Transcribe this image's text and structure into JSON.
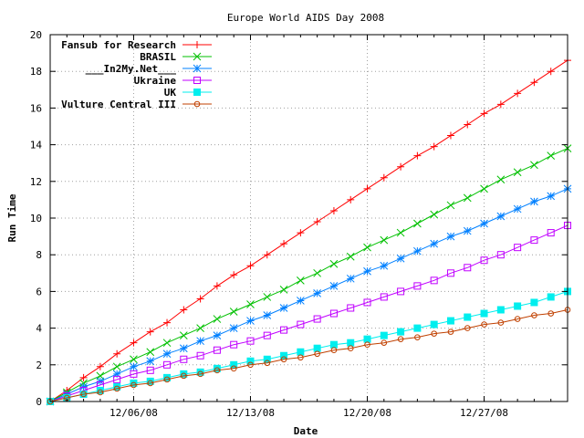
{
  "chart_data": {
    "type": "line",
    "title": "Europe World AIDS Day 2008",
    "xlabel": "Date",
    "ylabel": "Run Time",
    "xlim": [
      "2008-12-01",
      "2009-01-01"
    ],
    "ylim": [
      0,
      20
    ],
    "yticks": [
      0,
      2,
      4,
      6,
      8,
      10,
      12,
      14,
      16,
      18,
      20
    ],
    "xticks": [
      {
        "date": "2008-12-06",
        "label": "12/06/08"
      },
      {
        "date": "2008-12-13",
        "label": "12/13/08"
      },
      {
        "date": "2008-12-20",
        "label": "12/20/08"
      },
      {
        "date": "2008-12-27",
        "label": "12/27/08"
      }
    ],
    "grid": true,
    "legend_position": "top-left",
    "x": [
      "2008-12-01",
      "2008-12-02",
      "2008-12-03",
      "2008-12-04",
      "2008-12-05",
      "2008-12-06",
      "2008-12-07",
      "2008-12-08",
      "2008-12-09",
      "2008-12-10",
      "2008-12-11",
      "2008-12-12",
      "2008-12-13",
      "2008-12-14",
      "2008-12-15",
      "2008-12-16",
      "2008-12-17",
      "2008-12-18",
      "2008-12-19",
      "2008-12-20",
      "2008-12-21",
      "2008-12-22",
      "2008-12-23",
      "2008-12-24",
      "2008-12-25",
      "2008-12-26",
      "2008-12-27",
      "2008-12-28",
      "2008-12-29",
      "2008-12-30",
      "2008-12-31",
      "2009-01-01"
    ],
    "series": [
      {
        "name": "Fansub for Research",
        "color": "#ff0000",
        "marker": "plus",
        "values": [
          0,
          0.6,
          1.3,
          1.9,
          2.6,
          3.2,
          3.8,
          4.3,
          5.0,
          5.6,
          6.3,
          6.9,
          7.4,
          8.0,
          8.6,
          9.2,
          9.8,
          10.4,
          11.0,
          11.6,
          12.2,
          12.8,
          13.4,
          13.9,
          14.5,
          15.1,
          15.7,
          16.2,
          16.8,
          17.4,
          18.0,
          18.6
        ]
      },
      {
        "name": "BRASIL",
        "color": "#00c000",
        "marker": "cross",
        "values": [
          0,
          0.5,
          1.0,
          1.4,
          1.9,
          2.3,
          2.7,
          3.2,
          3.6,
          4.0,
          4.5,
          4.9,
          5.3,
          5.7,
          6.1,
          6.6,
          7.0,
          7.5,
          7.9,
          8.4,
          8.8,
          9.2,
          9.7,
          10.2,
          10.7,
          11.1,
          11.6,
          12.1,
          12.5,
          12.9,
          13.4,
          13.8
        ]
      },
      {
        "name": "___In2My.Net___",
        "color": "#0080ff",
        "marker": "star",
        "values": [
          0,
          0.4,
          0.8,
          1.1,
          1.5,
          1.9,
          2.2,
          2.6,
          2.9,
          3.3,
          3.6,
          4.0,
          4.4,
          4.7,
          5.1,
          5.5,
          5.9,
          6.3,
          6.7,
          7.1,
          7.4,
          7.8,
          8.2,
          8.6,
          9.0,
          9.3,
          9.7,
          10.1,
          10.5,
          10.9,
          11.2,
          11.6
        ]
      },
      {
        "name": "Ukraine",
        "color": "#c000ff",
        "marker": "box",
        "values": [
          0,
          0.3,
          0.6,
          0.9,
          1.2,
          1.5,
          1.7,
          2.0,
          2.3,
          2.5,
          2.8,
          3.1,
          3.3,
          3.6,
          3.9,
          4.2,
          4.5,
          4.8,
          5.1,
          5.4,
          5.7,
          6.0,
          6.3,
          6.6,
          7.0,
          7.3,
          7.7,
          8.0,
          8.4,
          8.8,
          9.2,
          9.6
        ]
      },
      {
        "name": "UK",
        "color": "#00eeee",
        "marker": "filled-box",
        "values": [
          0,
          0.2,
          0.4,
          0.6,
          0.8,
          1.0,
          1.1,
          1.3,
          1.5,
          1.6,
          1.8,
          2.0,
          2.2,
          2.3,
          2.5,
          2.7,
          2.9,
          3.1,
          3.2,
          3.4,
          3.6,
          3.8,
          4.0,
          4.2,
          4.4,
          4.6,
          4.8,
          5.0,
          5.2,
          5.4,
          5.7,
          6.0
        ]
      },
      {
        "name": "Vulture Central III",
        "color": "#c04000",
        "marker": "circle",
        "values": [
          0,
          0.2,
          0.4,
          0.5,
          0.7,
          0.9,
          1.0,
          1.2,
          1.4,
          1.5,
          1.7,
          1.8,
          2.0,
          2.1,
          2.3,
          2.4,
          2.6,
          2.8,
          2.9,
          3.1,
          3.2,
          3.4,
          3.5,
          3.7,
          3.8,
          4.0,
          4.2,
          4.3,
          4.5,
          4.7,
          4.8,
          5.0
        ]
      }
    ]
  }
}
